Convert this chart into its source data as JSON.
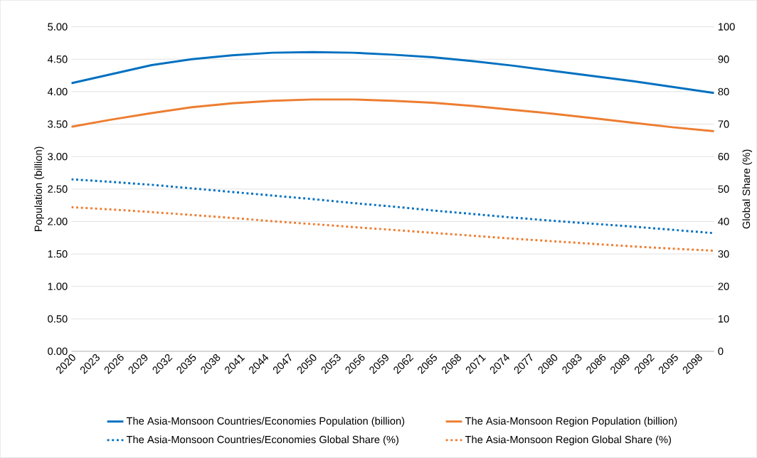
{
  "chart_data": {
    "type": "line",
    "ylabel": "Population (billion)",
    "y2label": "Global Share (%)",
    "x": [
      2020,
      2025,
      2030,
      2035,
      2040,
      2045,
      2050,
      2055,
      2060,
      2065,
      2070,
      2075,
      2080,
      2085,
      2090,
      2095,
      2100
    ],
    "series": [
      {
        "name": "The Asia-Monsoon Countries/Economies Population (billion)",
        "color": "#0070c0",
        "line_style": "solid",
        "values": [
          4.13,
          4.27,
          4.41,
          4.5,
          4.56,
          4.6,
          4.61,
          4.6,
          4.57,
          4.53,
          4.47,
          4.4,
          4.32,
          4.24,
          4.16,
          4.07,
          3.98
        ]
      },
      {
        "name": "The Asia-Monsoon Region Population (billion)",
        "color": "#ed7d31",
        "line_style": "solid",
        "values": [
          3.46,
          3.57,
          3.67,
          3.76,
          3.82,
          3.86,
          3.88,
          3.88,
          3.86,
          3.83,
          3.78,
          3.72,
          3.66,
          3.59,
          3.52,
          3.45,
          3.39
        ]
      },
      {
        "name": "The Asia-Monsoon Countries/Economies Global Share (%)",
        "color": "#0070c0",
        "line_style": "dotted",
        "axis": "y2",
        "values": [
          53,
          52.2,
          51.3,
          50.2,
          49.1,
          48,
          46.9,
          45.7,
          44.6,
          43.4,
          42.3,
          41.2,
          40.2,
          39.3,
          38.4,
          37.4,
          36.4
        ]
      },
      {
        "name": "The Asia-Monsoon Region Global Share (%)",
        "color": "#ed7d31",
        "line_style": "dotted",
        "axis": "y2",
        "values": [
          44.4,
          43.7,
          42.9,
          42,
          41.1,
          40.1,
          39.2,
          38.3,
          37.4,
          36.5,
          35.6,
          34.7,
          33.9,
          33.1,
          32.3,
          31.6,
          31.0
        ]
      }
    ],
    "xlim": [
      2020,
      2100
    ],
    "xticks": [
      2020,
      2023,
      2026,
      2029,
      2032,
      2035,
      2038,
      2041,
      2044,
      2047,
      2050,
      2053,
      2056,
      2059,
      2062,
      2065,
      2068,
      2071,
      2074,
      2077,
      2080,
      2083,
      2086,
      2089,
      2092,
      2095,
      2098
    ],
    "ylim": [
      0,
      5
    ],
    "yticks": [
      {
        "value": 0,
        "label": "0.00"
      },
      {
        "value": 0.5,
        "label": "0.50"
      },
      {
        "value": 1,
        "label": "1.00"
      },
      {
        "value": 1.5,
        "label": "1.50"
      },
      {
        "value": 2,
        "label": "2.00"
      },
      {
        "value": 2.5,
        "label": "2.50"
      },
      {
        "value": 3,
        "label": "3.00"
      },
      {
        "value": 3.5,
        "label": "3.50"
      },
      {
        "value": 4,
        "label": "4.00"
      },
      {
        "value": 4.5,
        "label": "4.50"
      },
      {
        "value": 5,
        "label": "5.00"
      }
    ],
    "y2lim": [
      0,
      100
    ],
    "y2ticks": [
      0,
      10,
      20,
      30,
      40,
      50,
      60,
      70,
      80,
      90,
      100
    ],
    "grid": "y",
    "legend": "bottom"
  }
}
